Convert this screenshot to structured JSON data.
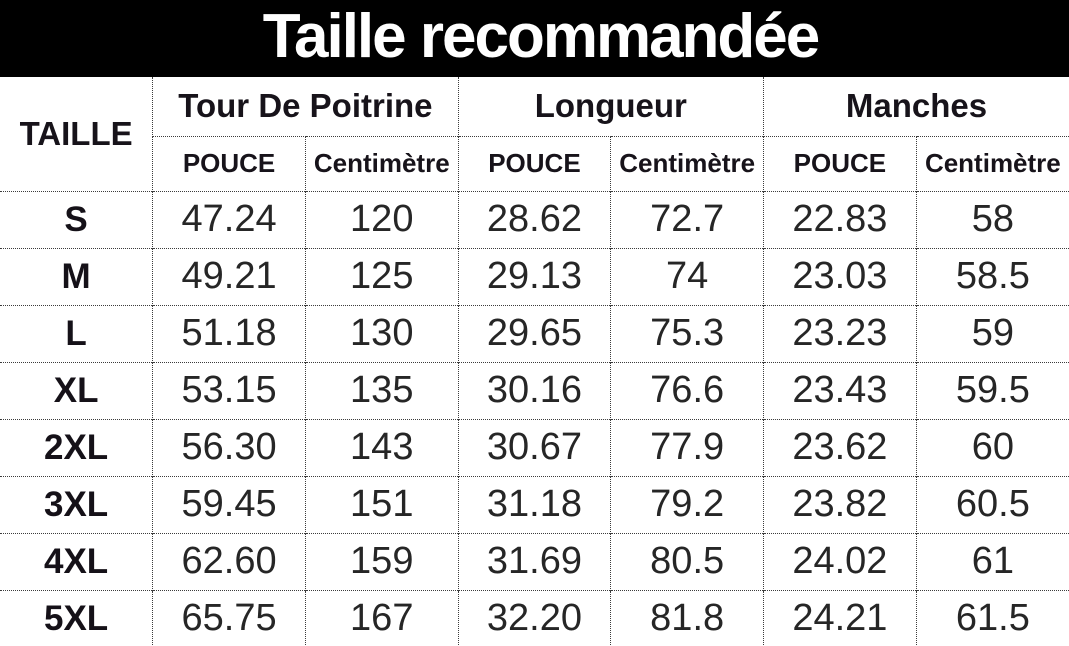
{
  "banner": {
    "title": "Taille recommandée"
  },
  "colors": {
    "banner_bg": "#000000",
    "title_fg": "#ffffff",
    "text_fg": "#17131a",
    "border": "#3c3c3c"
  },
  "chart_data": {
    "type": "table",
    "title": "Taille recommandée",
    "corner_header": "TAILLE",
    "column_groups": [
      {
        "label": "Tour De Poitrine",
        "units": [
          "POUCE",
          "Centimètre"
        ]
      },
      {
        "label": "Longueur",
        "units": [
          "POUCE",
          "Centimètre"
        ]
      },
      {
        "label": "Manches",
        "units": [
          "POUCE",
          "Centimètre"
        ]
      }
    ],
    "rows": [
      {
        "size": "S",
        "values": [
          "47.24",
          "120",
          "28.62",
          "72.7",
          "22.83",
          "58"
        ]
      },
      {
        "size": "M",
        "values": [
          "49.21",
          "125",
          "29.13",
          "74",
          "23.03",
          "58.5"
        ]
      },
      {
        "size": "L",
        "values": [
          "51.18",
          "130",
          "29.65",
          "75.3",
          "23.23",
          "59"
        ]
      },
      {
        "size": "XL",
        "values": [
          "53.15",
          "135",
          "30.16",
          "76.6",
          "23.43",
          "59.5"
        ]
      },
      {
        "size": "2XL",
        "values": [
          "56.30",
          "143",
          "30.67",
          "77.9",
          "23.62",
          "60"
        ]
      },
      {
        "size": "3XL",
        "values": [
          "59.45",
          "151",
          "31.18",
          "79.2",
          "23.82",
          "60.5"
        ]
      },
      {
        "size": "4XL",
        "values": [
          "62.60",
          "159",
          "31.69",
          "80.5",
          "24.02",
          "61"
        ]
      },
      {
        "size": "5XL",
        "values": [
          "65.75",
          "167",
          "32.20",
          "81.8",
          "24.21",
          "61.5"
        ]
      }
    ]
  }
}
